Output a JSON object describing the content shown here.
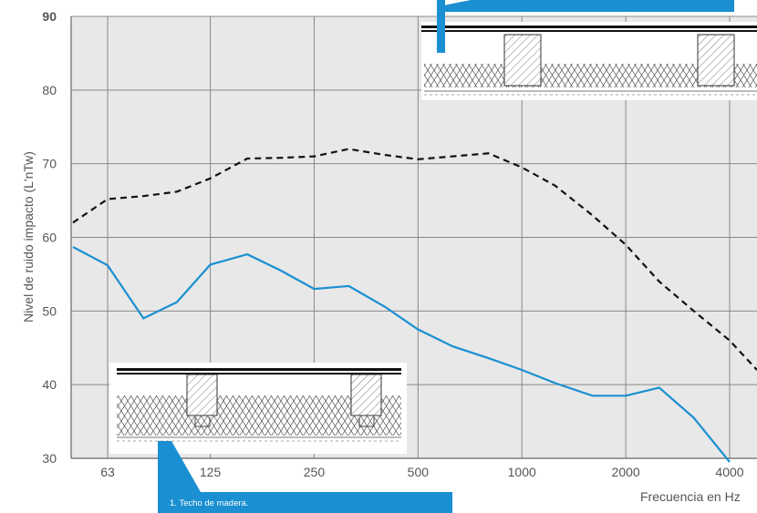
{
  "chart_data": {
    "type": "line",
    "title": "",
    "xlabel": "Frecuencia en Hz",
    "ylabel": "Nivel de ruido impacto (L'nTw)",
    "x_scale": "log",
    "x_tick_values": [
      63,
      125,
      250,
      500,
      1000,
      2000,
      4000
    ],
    "x_tick_labels": [
      "63",
      "125",
      "250",
      "500",
      "1000",
      "2000",
      "4000"
    ],
    "y_ticks": [
      "90",
      "80",
      "70",
      "60",
      "50",
      "40",
      "30"
    ],
    "ylim": [
      30,
      90
    ],
    "grid": true,
    "series": [
      {
        "style": "dashed",
        "color": "#111111",
        "x": [
          50,
          63,
          80,
          100,
          125,
          160,
          200,
          250,
          315,
          400,
          500,
          630,
          800,
          1000,
          1250,
          1600,
          2000,
          2500,
          3150,
          4000,
          5000
        ],
        "y": [
          62,
          65.2,
          65.6,
          66.2,
          68,
          70.7,
          70.8,
          71,
          72,
          71.2,
          70.6,
          71,
          71.4,
          69.5,
          67,
          63,
          59,
          54,
          50,
          46,
          42
        ]
      },
      {
        "style": "solid",
        "color": "#1a8fd1",
        "x": [
          50,
          63,
          80,
          100,
          125,
          160,
          200,
          250,
          315,
          400,
          500,
          630,
          800,
          1000,
          1250,
          1600,
          2000,
          2500,
          3150,
          4000
        ],
        "y": [
          58.7,
          56.2,
          49,
          51.2,
          56.3,
          57.7,
          55.5,
          53,
          53.4,
          50.6,
          47.5,
          45.2,
          43.6,
          42,
          40.2,
          38.5,
          38.5,
          39.6,
          35.5,
          29.5
        ]
      }
    ],
    "annotations": [
      {
        "text": "1. Techo de madera."
      }
    ]
  },
  "colors": {
    "accent": "#1a8fd1",
    "grid": "#888888",
    "plot_background": "#e8e8e8"
  }
}
